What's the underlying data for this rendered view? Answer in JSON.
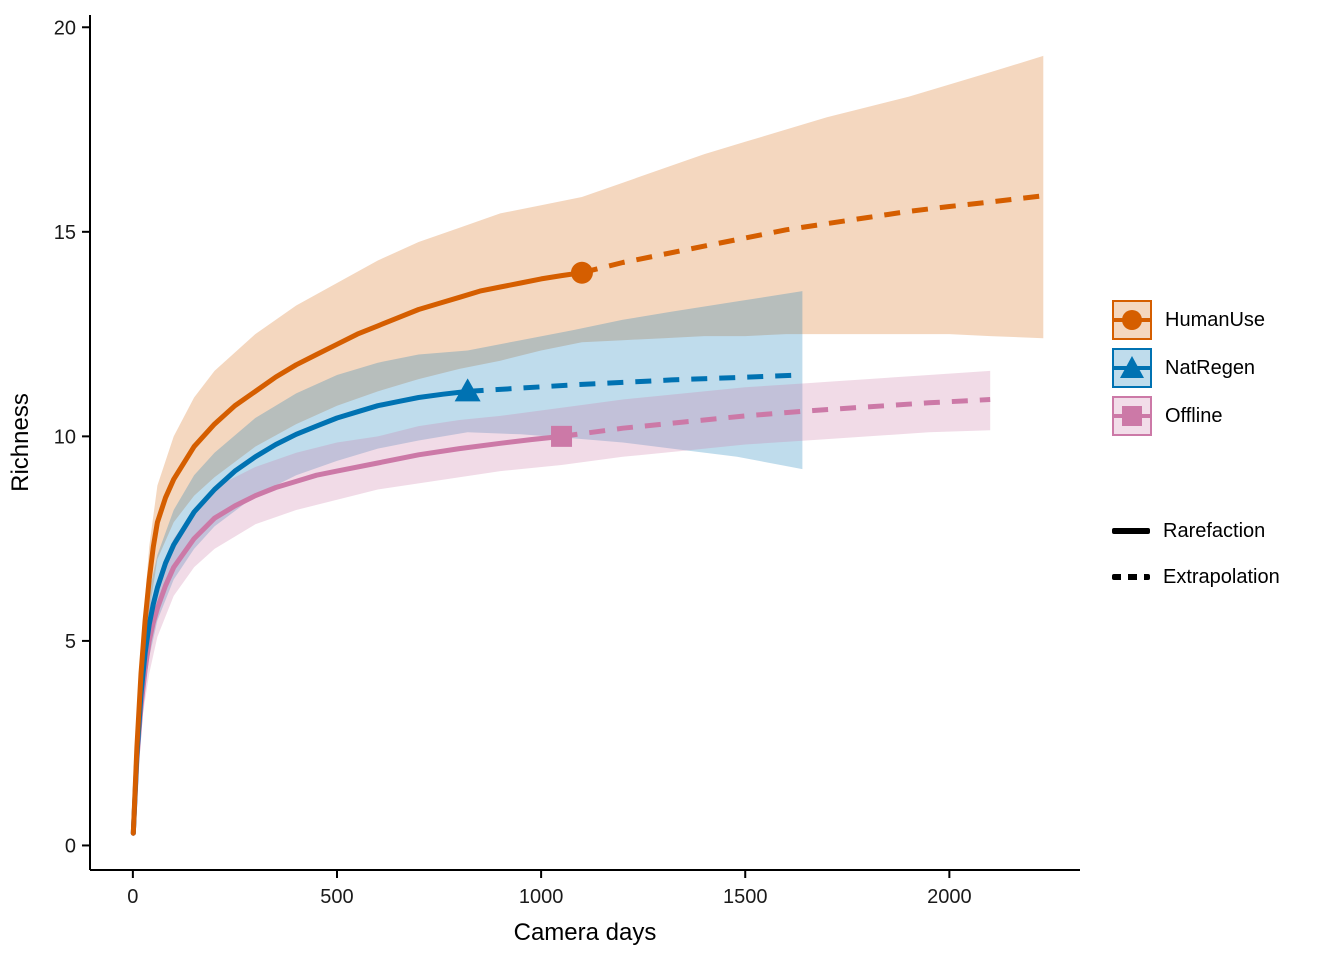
{
  "chart_data": {
    "type": "line",
    "xlabel": "Camera days",
    "ylabel": "Richness",
    "axes": {
      "x_display_range": [
        -105,
        2320
      ],
      "y_display_range": [
        -0.6,
        20.3
      ],
      "xtick_values": [
        0,
        500,
        1000,
        1500,
        2000
      ],
      "xtick_labels": [
        "0",
        "500",
        "1000",
        "1500",
        "2000"
      ],
      "ytick_values": [
        0,
        5,
        10,
        15,
        20
      ],
      "ytick_labels": [
        "0",
        "5",
        "10",
        "15",
        "20"
      ],
      "grid": false,
      "axis_color": "#000000",
      "tick_label_color": "#1a1a1a"
    },
    "legend_position": "right",
    "series": [
      {
        "id": "humanuse",
        "name": "HumanUse",
        "color": "#D55E00",
        "marker": "circle",
        "ribbon_opacity": 0.25,
        "observed": [
          1100,
          14.0
        ],
        "rarefaction": [
          [
            1,
            0.3
          ],
          [
            10,
            2.4
          ],
          [
            20,
            4.2
          ],
          [
            30,
            5.5
          ],
          [
            40,
            6.5
          ],
          [
            50,
            7.3
          ],
          [
            60,
            7.9
          ],
          [
            80,
            8.5
          ],
          [
            100,
            8.95
          ],
          [
            150,
            9.75
          ],
          [
            200,
            10.3
          ],
          [
            250,
            10.75
          ],
          [
            300,
            11.1
          ],
          [
            350,
            11.45
          ],
          [
            400,
            11.75
          ],
          [
            450,
            12.0
          ],
          [
            500,
            12.25
          ],
          [
            550,
            12.5
          ],
          [
            600,
            12.7
          ],
          [
            650,
            12.9
          ],
          [
            700,
            13.1
          ],
          [
            750,
            13.25
          ],
          [
            800,
            13.4
          ],
          [
            850,
            13.55
          ],
          [
            900,
            13.65
          ],
          [
            950,
            13.75
          ],
          [
            1000,
            13.85
          ],
          [
            1050,
            13.93
          ],
          [
            1100,
            14.0
          ]
        ],
        "extrapolation": [
          [
            1100,
            14.0
          ],
          [
            1200,
            14.25
          ],
          [
            1300,
            14.45
          ],
          [
            1400,
            14.65
          ],
          [
            1500,
            14.85
          ],
          [
            1600,
            15.05
          ],
          [
            1700,
            15.2
          ],
          [
            1800,
            15.35
          ],
          [
            1900,
            15.5
          ],
          [
            2000,
            15.62
          ],
          [
            2100,
            15.73
          ],
          [
            2230,
            15.88
          ]
        ],
        "ribbon": [
          [
            1,
            0.2,
            0.4
          ],
          [
            20,
            3.6,
            4.8
          ],
          [
            40,
            5.7,
            7.3
          ],
          [
            60,
            7.0,
            8.8
          ],
          [
            100,
            7.9,
            10.0
          ],
          [
            150,
            8.55,
            10.95
          ],
          [
            200,
            9.0,
            11.6
          ],
          [
            300,
            9.75,
            12.5
          ],
          [
            400,
            10.3,
            13.2
          ],
          [
            500,
            10.75,
            13.75
          ],
          [
            600,
            11.1,
            14.3
          ],
          [
            700,
            11.4,
            14.75
          ],
          [
            800,
            11.65,
            15.1
          ],
          [
            900,
            11.85,
            15.45
          ],
          [
            1000,
            12.1,
            15.65
          ],
          [
            1100,
            12.3,
            15.85
          ],
          [
            1200,
            12.35,
            16.2
          ],
          [
            1300,
            12.4,
            16.55
          ],
          [
            1400,
            12.45,
            16.9
          ],
          [
            1500,
            12.45,
            17.2
          ],
          [
            1600,
            12.5,
            17.5
          ],
          [
            1700,
            12.5,
            17.8
          ],
          [
            1800,
            12.5,
            18.05
          ],
          [
            1900,
            12.5,
            18.3
          ],
          [
            2000,
            12.5,
            18.6
          ],
          [
            2100,
            12.45,
            18.9
          ],
          [
            2230,
            12.4,
            19.3
          ]
        ]
      },
      {
        "id": "natregen",
        "name": "NatRegen",
        "color": "#0072B2",
        "marker": "triangle",
        "ribbon_opacity": 0.25,
        "observed": [
          820,
          11.1
        ],
        "rarefaction": [
          [
            1,
            0.3
          ],
          [
            10,
            2.2
          ],
          [
            20,
            3.7
          ],
          [
            30,
            4.7
          ],
          [
            40,
            5.4
          ],
          [
            50,
            5.9
          ],
          [
            60,
            6.3
          ],
          [
            80,
            6.9
          ],
          [
            100,
            7.35
          ],
          [
            150,
            8.15
          ],
          [
            200,
            8.7
          ],
          [
            250,
            9.15
          ],
          [
            300,
            9.5
          ],
          [
            350,
            9.8
          ],
          [
            400,
            10.05
          ],
          [
            450,
            10.25
          ],
          [
            500,
            10.45
          ],
          [
            550,
            10.6
          ],
          [
            600,
            10.75
          ],
          [
            650,
            10.85
          ],
          [
            700,
            10.95
          ],
          [
            760,
            11.03
          ],
          [
            820,
            11.1
          ]
        ],
        "extrapolation": [
          [
            820,
            11.1
          ],
          [
            950,
            11.18
          ],
          [
            1080,
            11.26
          ],
          [
            1200,
            11.32
          ],
          [
            1320,
            11.38
          ],
          [
            1480,
            11.44
          ],
          [
            1640,
            11.5
          ]
        ],
        "ribbon": [
          [
            1,
            0.2,
            0.4
          ],
          [
            20,
            3.1,
            4.3
          ],
          [
            40,
            4.6,
            6.2
          ],
          [
            60,
            5.5,
            7.1
          ],
          [
            100,
            6.5,
            8.2
          ],
          [
            150,
            7.25,
            9.05
          ],
          [
            200,
            7.8,
            9.6
          ],
          [
            300,
            8.55,
            10.45
          ],
          [
            400,
            9.05,
            11.05
          ],
          [
            500,
            9.4,
            11.5
          ],
          [
            600,
            9.7,
            11.8
          ],
          [
            700,
            9.9,
            12.0
          ],
          [
            820,
            10.1,
            12.1
          ],
          [
            950,
            10.05,
            12.35
          ],
          [
            1080,
            9.95,
            12.6
          ],
          [
            1200,
            9.85,
            12.85
          ],
          [
            1320,
            9.7,
            13.05
          ],
          [
            1480,
            9.5,
            13.3
          ],
          [
            1640,
            9.2,
            13.55
          ]
        ]
      },
      {
        "id": "offline",
        "name": "Offline",
        "color": "#CC79A7",
        "marker": "square",
        "ribbon_opacity": 0.27,
        "observed": [
          1050,
          10.0
        ],
        "rarefaction": [
          [
            1,
            0.3
          ],
          [
            10,
            2.1
          ],
          [
            20,
            3.4
          ],
          [
            30,
            4.3
          ],
          [
            40,
            5.0
          ],
          [
            50,
            5.45
          ],
          [
            60,
            5.8
          ],
          [
            80,
            6.35
          ],
          [
            100,
            6.8
          ],
          [
            150,
            7.5
          ],
          [
            200,
            8.0
          ],
          [
            250,
            8.3
          ],
          [
            300,
            8.55
          ],
          [
            350,
            8.75
          ],
          [
            400,
            8.9
          ],
          [
            450,
            9.05
          ],
          [
            500,
            9.15
          ],
          [
            600,
            9.35
          ],
          [
            700,
            9.55
          ],
          [
            800,
            9.7
          ],
          [
            900,
            9.83
          ],
          [
            975,
            9.92
          ],
          [
            1050,
            10.0
          ]
        ],
        "extrapolation": [
          [
            1050,
            10.0
          ],
          [
            1200,
            10.2
          ],
          [
            1350,
            10.35
          ],
          [
            1500,
            10.5
          ],
          [
            1650,
            10.62
          ],
          [
            1800,
            10.72
          ],
          [
            1950,
            10.82
          ],
          [
            2100,
            10.9
          ]
        ],
        "ribbon": [
          [
            1,
            0.2,
            0.4
          ],
          [
            20,
            2.9,
            3.9
          ],
          [
            40,
            4.2,
            5.8
          ],
          [
            60,
            5.1,
            6.5
          ],
          [
            100,
            6.1,
            7.5
          ],
          [
            150,
            6.8,
            8.2
          ],
          [
            200,
            7.25,
            8.75
          ],
          [
            300,
            7.85,
            9.25
          ],
          [
            400,
            8.2,
            9.6
          ],
          [
            500,
            8.45,
            9.85
          ],
          [
            600,
            8.7,
            10.0
          ],
          [
            700,
            8.85,
            10.25
          ],
          [
            800,
            9.0,
            10.4
          ],
          [
            900,
            9.15,
            10.5
          ],
          [
            1050,
            9.3,
            10.7
          ],
          [
            1200,
            9.5,
            10.9
          ],
          [
            1350,
            9.65,
            11.05
          ],
          [
            1500,
            9.8,
            11.2
          ],
          [
            1650,
            9.9,
            11.3
          ],
          [
            1800,
            10.0,
            11.4
          ],
          [
            1950,
            10.1,
            11.5
          ],
          [
            2100,
            10.15,
            11.6
          ]
        ]
      }
    ],
    "legend": {
      "linetypes": [
        {
          "label": "Rarefaction",
          "style": "solid"
        },
        {
          "label": "Extrapolation",
          "style": "dashed"
        }
      ]
    }
  }
}
